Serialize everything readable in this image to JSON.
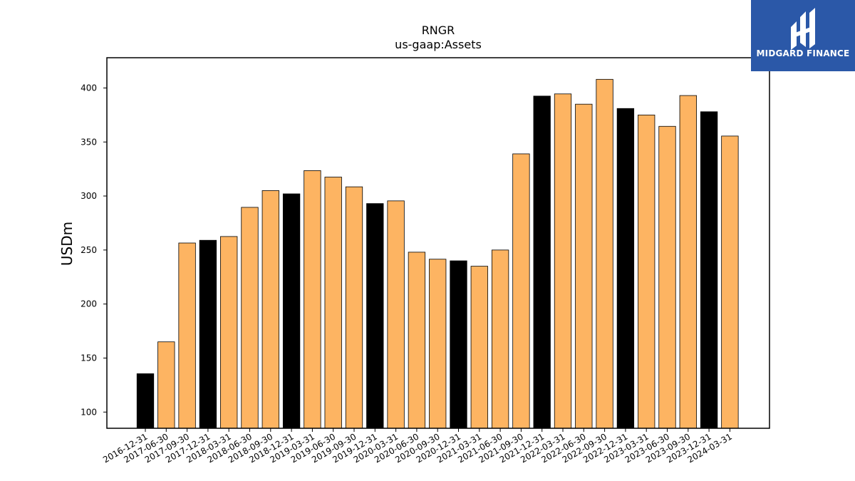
{
  "chart_data": {
    "type": "bar",
    "title": "RNGR",
    "subtitle": "us-gaap:Assets",
    "ylabel": "USDm",
    "xlabel": "",
    "ylim": [
      85,
      428
    ],
    "yticks": [
      100,
      150,
      200,
      250,
      300,
      350,
      400
    ],
    "categories": [
      "2016-12-31",
      "2017-06-30",
      "2017-09-30",
      "2017-12-31",
      "2018-03-31",
      "2018-06-30",
      "2018-09-30",
      "2018-12-31",
      "2019-03-31",
      "2019-06-30",
      "2019-09-30",
      "2019-12-31",
      "2020-03-31",
      "2020-06-30",
      "2020-09-30",
      "2020-12-31",
      "2021-03-31",
      "2021-06-30",
      "2021-09-30",
      "2021-12-31",
      "2022-03-31",
      "2022-06-30",
      "2022-09-30",
      "2022-12-31",
      "2023-03-31",
      "2023-06-30",
      "2023-09-30",
      "2023-12-31",
      "2024-03-31"
    ],
    "values": [
      135.5,
      165,
      256.5,
      259,
      262.5,
      289.5,
      305,
      302,
      323.5,
      317.5,
      308.5,
      293,
      295.5,
      248,
      241.5,
      240,
      235,
      250,
      339,
      392.5,
      394.5,
      385,
      408,
      381,
      375,
      364.5,
      393,
      378,
      355.5
    ],
    "year_end_color": "#000000",
    "interim_color": "#fdb462",
    "edge_color": "#000000",
    "grid": false
  },
  "logo": {
    "text": "MIDGARD FINANCE",
    "background": "#2b58a8"
  }
}
